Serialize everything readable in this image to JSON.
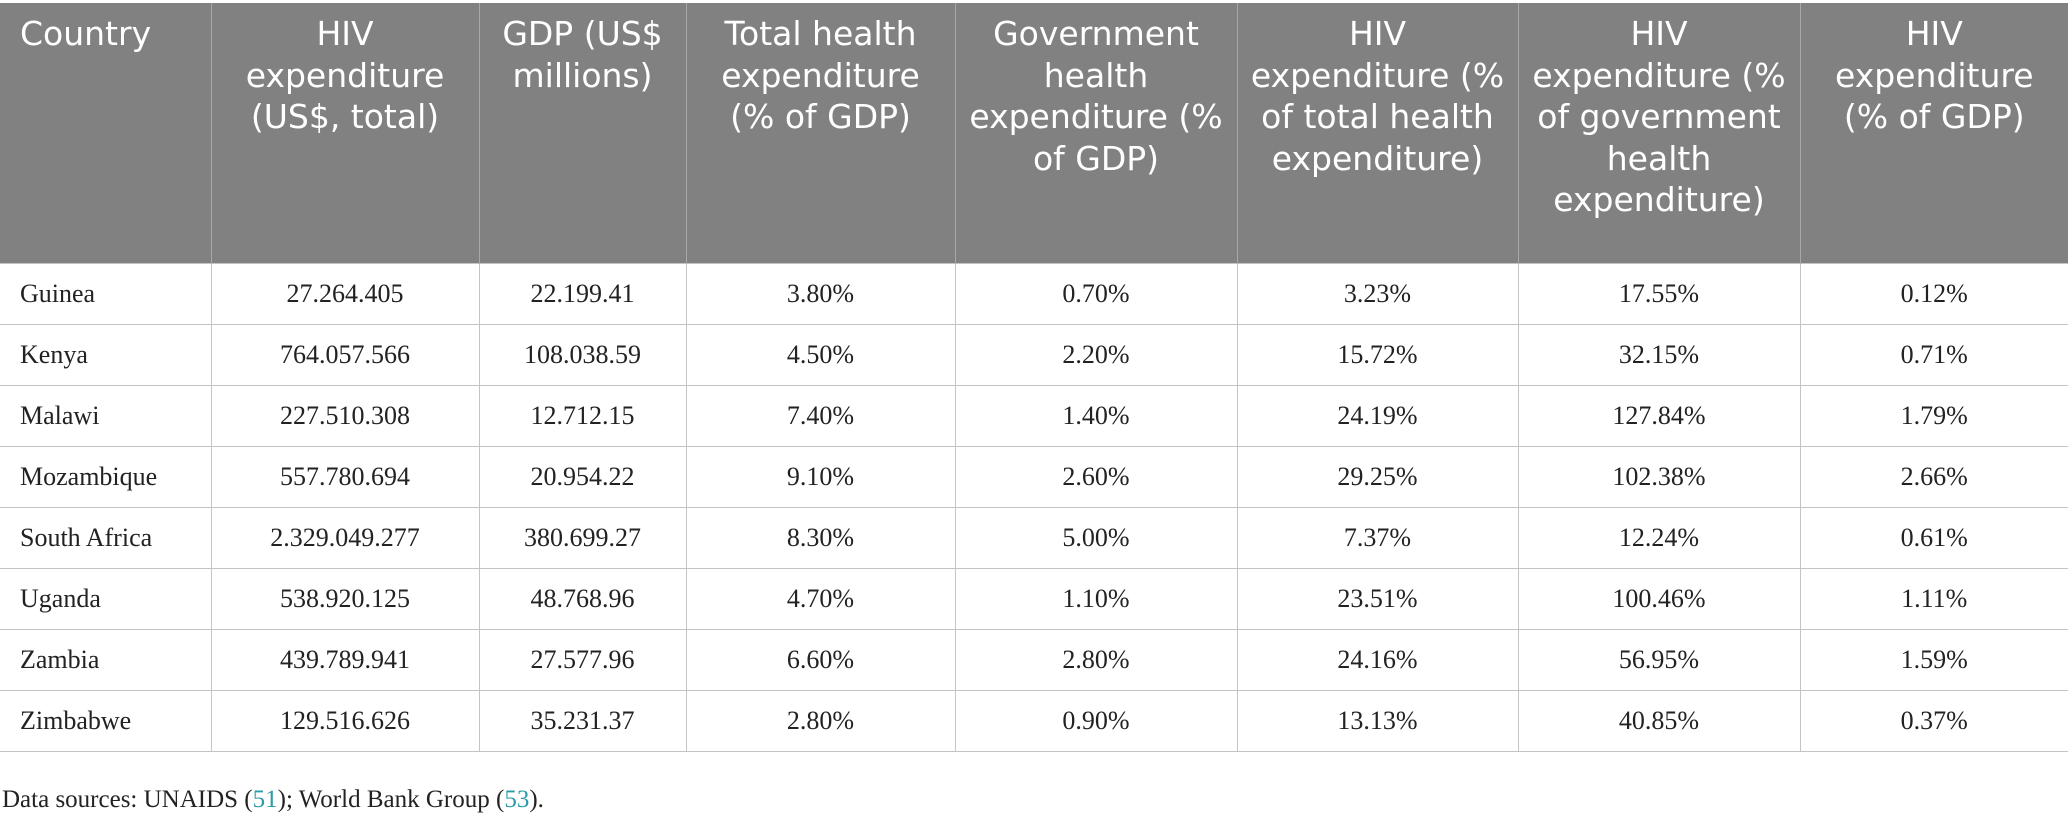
{
  "table": {
    "headers": [
      "Country",
      "HIV expenditure (US$, total)",
      "GDP (US$ millions)",
      "Total health expenditure (% of GDP)",
      "Government health expenditure (% of GDP)",
      "HIV expenditure (% of total health expenditure)",
      "HIV expenditure (% of government health expenditure)",
      "HIV expenditure (% of GDP)"
    ],
    "rows": [
      [
        "Guinea",
        "27.264.405",
        "22.199.41",
        "3.80%",
        "0.70%",
        "3.23%",
        "17.55%",
        "0.12%"
      ],
      [
        "Kenya",
        "764.057.566",
        "108.038.59",
        "4.50%",
        "2.20%",
        "15.72%",
        "32.15%",
        "0.71%"
      ],
      [
        "Malawi",
        "227.510.308",
        "12.712.15",
        "7.40%",
        "1.40%",
        "24.19%",
        "127.84%",
        "1.79%"
      ],
      [
        "Mozambique",
        "557.780.694",
        "20.954.22",
        "9.10%",
        "2.60%",
        "29.25%",
        "102.38%",
        "2.66%"
      ],
      [
        "South Africa",
        "2.329.049.277",
        "380.699.27",
        "8.30%",
        "5.00%",
        "7.37%",
        "12.24%",
        "0.61%"
      ],
      [
        "Uganda",
        "538.920.125",
        "48.768.96",
        "4.70%",
        "1.10%",
        "23.51%",
        "100.46%",
        "1.11%"
      ],
      [
        "Zambia",
        "439.789.941",
        "27.577.96",
        "6.60%",
        "2.80%",
        "24.16%",
        "56.95%",
        "1.59%"
      ],
      [
        "Zimbabwe",
        "129.516.626",
        "35.231.37",
        "2.80%",
        "0.90%",
        "13.13%",
        "40.85%",
        "0.37%"
      ]
    ]
  },
  "note": {
    "prefix": "Data sources: UNAIDS (",
    "ref1": "51",
    "middle": "); World Bank Group (",
    "ref2": "53",
    "suffix": ")."
  },
  "colors": {
    "header_bg": "#818181",
    "header_text": "#ffffff",
    "link": "#2a9ba8"
  }
}
